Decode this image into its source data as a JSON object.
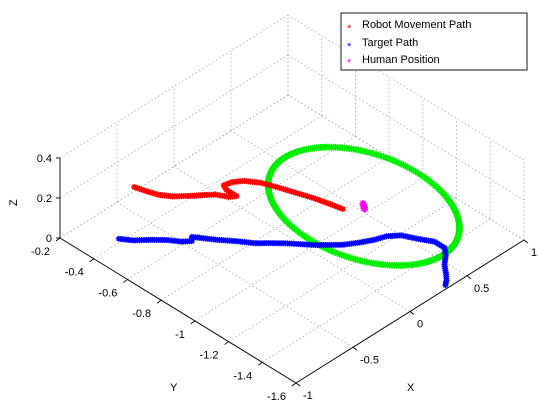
{
  "chart_data": {
    "type": "scatter",
    "projection": "3d",
    "title": "",
    "xlabel": "X",
    "ylabel": "Y",
    "zlabel": "Z",
    "xlim": [
      -1,
      1
    ],
    "ylim": [
      -1.6,
      -0.2
    ],
    "zlim": [
      0,
      0.4
    ],
    "xticks": [
      "-1",
      "-0.5",
      "0",
      "0.5",
      "1"
    ],
    "yticks": [
      "-0.2",
      "-0.4",
      "-0.6",
      "-0.8",
      "-1",
      "-1.2",
      "-1.4",
      "-1.6"
    ],
    "zticks": [
      "0",
      "0.2",
      "0.4"
    ],
    "grid": true,
    "legend_position": "top-right",
    "series": [
      {
        "name": "Robot Movement Path",
        "color": "#ff0000",
        "marker": "*",
        "points": [
          [
            -0.6,
            -0.37,
            0.2
          ],
          [
            -0.58,
            -0.42,
            0.2
          ],
          [
            -0.55,
            -0.48,
            0.2
          ],
          [
            -0.5,
            -0.53,
            0.2
          ],
          [
            -0.42,
            -0.58,
            0.2
          ],
          [
            -0.35,
            -0.62,
            0.2
          ],
          [
            -0.3,
            -0.65,
            0.2
          ],
          [
            -0.26,
            -0.7,
            0.2
          ],
          [
            -0.22,
            -0.72,
            0.2
          ],
          [
            -0.22,
            -0.66,
            0.2
          ],
          [
            -0.2,
            -0.63,
            0.2
          ],
          [
            -0.14,
            -0.64,
            0.2
          ],
          [
            -0.08,
            -0.67,
            0.2
          ],
          [
            -0.02,
            -0.73,
            0.2
          ],
          [
            0.02,
            -0.8,
            0.2
          ],
          [
            0.06,
            -0.88,
            0.2
          ],
          [
            0.1,
            -0.96,
            0.2
          ],
          [
            0.13,
            -1.04,
            0.2
          ],
          [
            0.15,
            -1.1,
            0.2
          ]
        ]
      },
      {
        "name": "Target Path",
        "color": "#0000ff",
        "marker": "*",
        "points": [
          [
            -0.75,
            -0.38,
            0
          ],
          [
            -0.7,
            -0.43,
            0
          ],
          [
            -0.62,
            -0.48,
            0
          ],
          [
            -0.55,
            -0.53,
            0
          ],
          [
            -0.5,
            -0.58,
            0
          ],
          [
            -0.45,
            -0.61,
            0
          ],
          [
            -0.42,
            -0.59,
            0
          ],
          [
            -0.38,
            -0.63,
            0
          ],
          [
            -0.33,
            -0.68,
            0
          ],
          [
            -0.25,
            -0.75,
            0
          ],
          [
            -0.19,
            -0.81,
            0
          ],
          [
            -0.13,
            -0.85,
            0
          ],
          [
            -0.06,
            -0.9,
            0
          ],
          [
            0,
            -0.95,
            0
          ],
          [
            0.06,
            -1,
            0
          ],
          [
            0.12,
            -1.04,
            0
          ],
          [
            0.18,
            -1.08,
            0
          ],
          [
            0.27,
            -1.12,
            0
          ],
          [
            0.35,
            -1.15,
            0
          ],
          [
            0.43,
            -1.17,
            0
          ],
          [
            0.5,
            -1.21,
            0
          ],
          [
            0.55,
            -1.28,
            0
          ],
          [
            0.6,
            -1.34,
            0
          ],
          [
            0.6,
            -1.4,
            0
          ],
          [
            0.55,
            -1.44,
            0
          ],
          [
            0.48,
            -1.48,
            0
          ],
          [
            0.42,
            -1.53,
            0
          ],
          [
            0.38,
            -1.56,
            0
          ],
          [
            0.34,
            -1.58,
            0
          ]
        ]
      },
      {
        "name": "Human Position",
        "color": "#ff00ff",
        "marker": "*",
        "points": [
          [
            0.26,
            -1.15,
            0.2
          ]
        ]
      }
    ],
    "unlabeled_series": [
      {
        "color": "#00ee00",
        "marker": "*",
        "shape": "circle",
        "center": [
          0.26,
          -1.15,
          0.2
        ],
        "radius": 0.47
      }
    ]
  }
}
